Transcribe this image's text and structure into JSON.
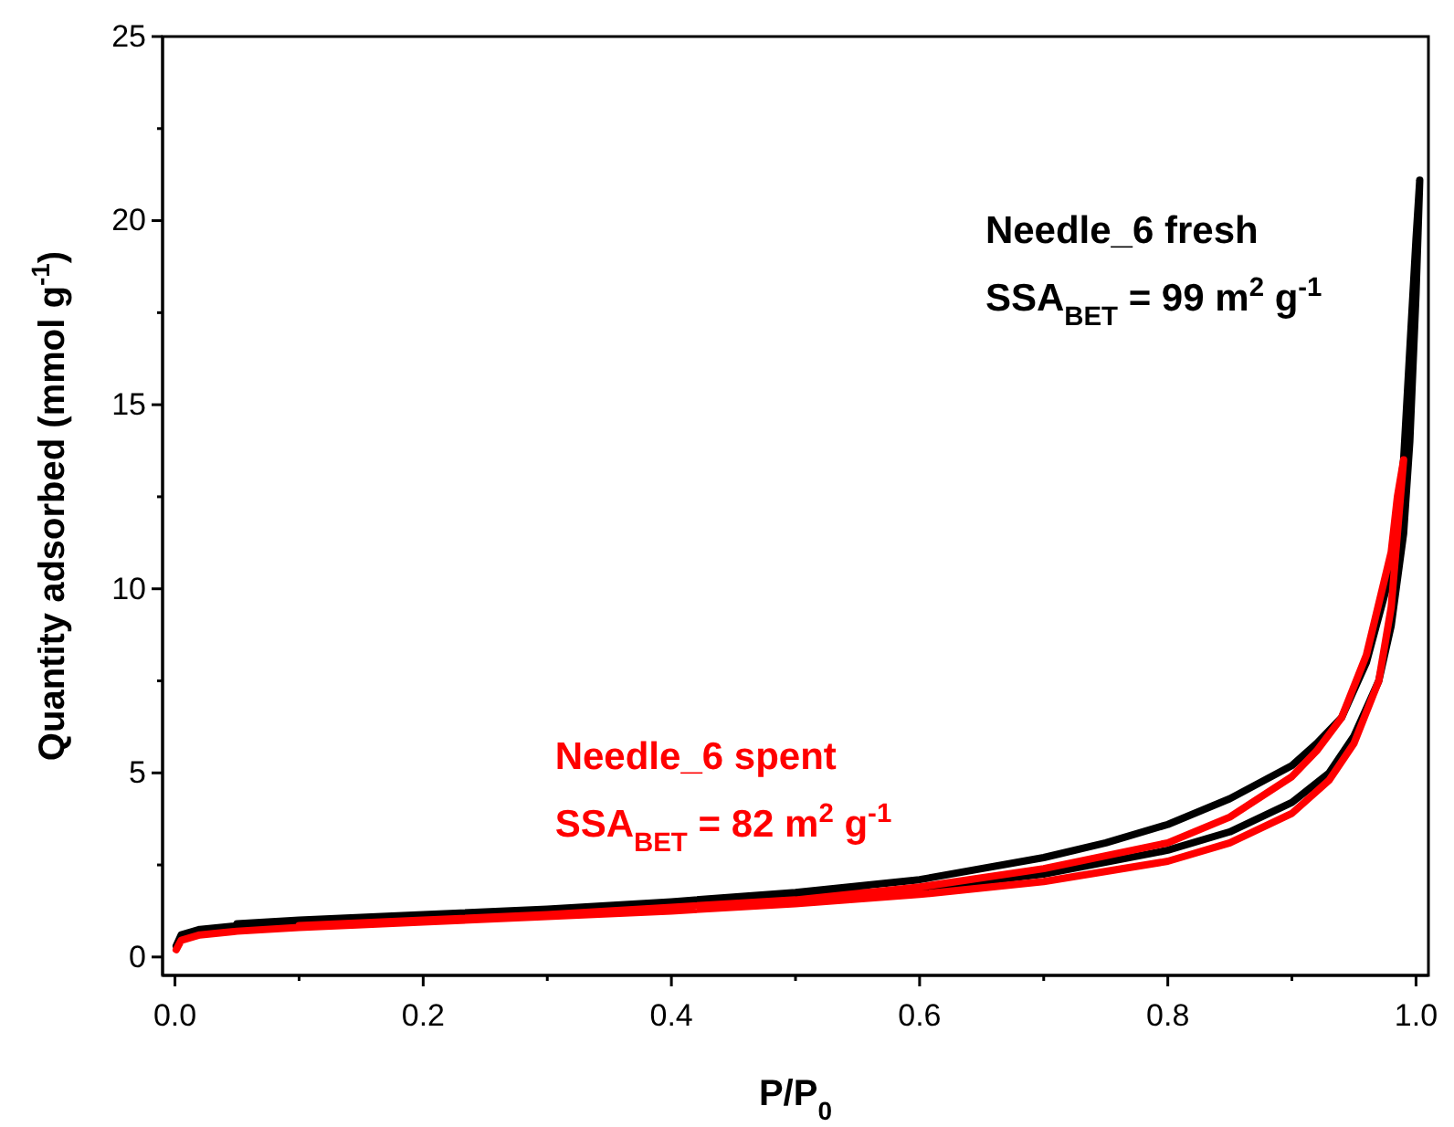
{
  "chart_data": {
    "type": "line",
    "xlabel": "P/P$_{0}$",
    "ylabel": "Quantity adsorbed (mmol g$^{-1}$)",
    "xlim": [
      -0.01,
      1.01
    ],
    "ylim": [
      -0.5,
      25
    ],
    "xticks": [
      {
        "value": 0,
        "label": "0.0"
      },
      {
        "value": 0.1,
        "label": null
      },
      {
        "value": 0.2,
        "label": "0.2"
      },
      {
        "value": 0.3,
        "label": null
      },
      {
        "value": 0.4,
        "label": "0.4"
      },
      {
        "value": 0.5,
        "label": null
      },
      {
        "value": 0.6,
        "label": "0.6"
      },
      {
        "value": 0.7,
        "label": null
      },
      {
        "value": 0.8,
        "label": "0.8"
      },
      {
        "value": 0.9,
        "label": null
      },
      {
        "value": 1,
        "label": "1.0"
      }
    ],
    "yticks": [
      0,
      {
        "value": 2.5,
        "label": null
      },
      5,
      {
        "value": 7.5,
        "label": null
      },
      10,
      {
        "value": 12.5,
        "label": null
      },
      15,
      {
        "value": 17.5,
        "label": null
      },
      20,
      {
        "value": 22.5,
        "label": null
      },
      25
    ],
    "grid": false,
    "marker": "none",
    "line_style": "solid",
    "series": [
      {
        "name": "Needle_6 fresh",
        "color": "#000000",
        "x": [
          0.001,
          0.005,
          0.02,
          0.05,
          0.1,
          0.2,
          0.3,
          0.4,
          0.5,
          0.6,
          0.7,
          0.8,
          0.85,
          0.9,
          0.93,
          0.95,
          0.97,
          0.98,
          0.99,
          0.995,
          1.0,
          1.003,
          1.0,
          0.995,
          0.99,
          0.98,
          0.96,
          0.94,
          0.92,
          0.9,
          0.85,
          0.8,
          0.75,
          0.7,
          0.6,
          0.5,
          0.4,
          0.3,
          0.2,
          0.1,
          0.05
        ],
        "values": [
          0.3,
          0.6,
          0.75,
          0.85,
          0.95,
          1.1,
          1.25,
          1.4,
          1.6,
          1.85,
          2.25,
          2.9,
          3.4,
          4.2,
          5.0,
          6.0,
          7.5,
          9.0,
          11.5,
          14,
          18,
          21.1,
          19.5,
          16.5,
          13.5,
          10.5,
          8.0,
          6.5,
          5.8,
          5.2,
          4.3,
          3.6,
          3.1,
          2.7,
          2.1,
          1.75,
          1.5,
          1.3,
          1.15,
          1.0,
          0.9
        ]
      },
      {
        "name": "Needle_6 spent",
        "color": "#ff0000",
        "x": [
          0.001,
          0.005,
          0.02,
          0.05,
          0.1,
          0.2,
          0.3,
          0.4,
          0.5,
          0.6,
          0.7,
          0.8,
          0.85,
          0.9,
          0.93,
          0.95,
          0.97,
          0.98,
          0.99,
          0.985,
          0.98,
          0.96,
          0.94,
          0.92,
          0.9,
          0.85,
          0.8,
          0.7,
          0.6,
          0.5,
          0.4,
          0.3,
          0.2,
          0.1
        ],
        "values": [
          0.2,
          0.45,
          0.6,
          0.7,
          0.8,
          0.95,
          1.1,
          1.25,
          1.45,
          1.7,
          2.05,
          2.6,
          3.1,
          3.9,
          4.8,
          5.8,
          7.5,
          9.5,
          13.5,
          12.5,
          11,
          8.2,
          6.5,
          5.6,
          4.9,
          3.8,
          3.1,
          2.4,
          1.9,
          1.55,
          1.35,
          1.15,
          1.0,
          0.85
        ]
      }
    ],
    "annotations": [
      "SSA$_{BET}$ = 99 m$^{2}$ g$^{-1}$",
      "SSA$_{BET}$ = 82 m$^{2}$ g$^{-1}$"
    ]
  }
}
